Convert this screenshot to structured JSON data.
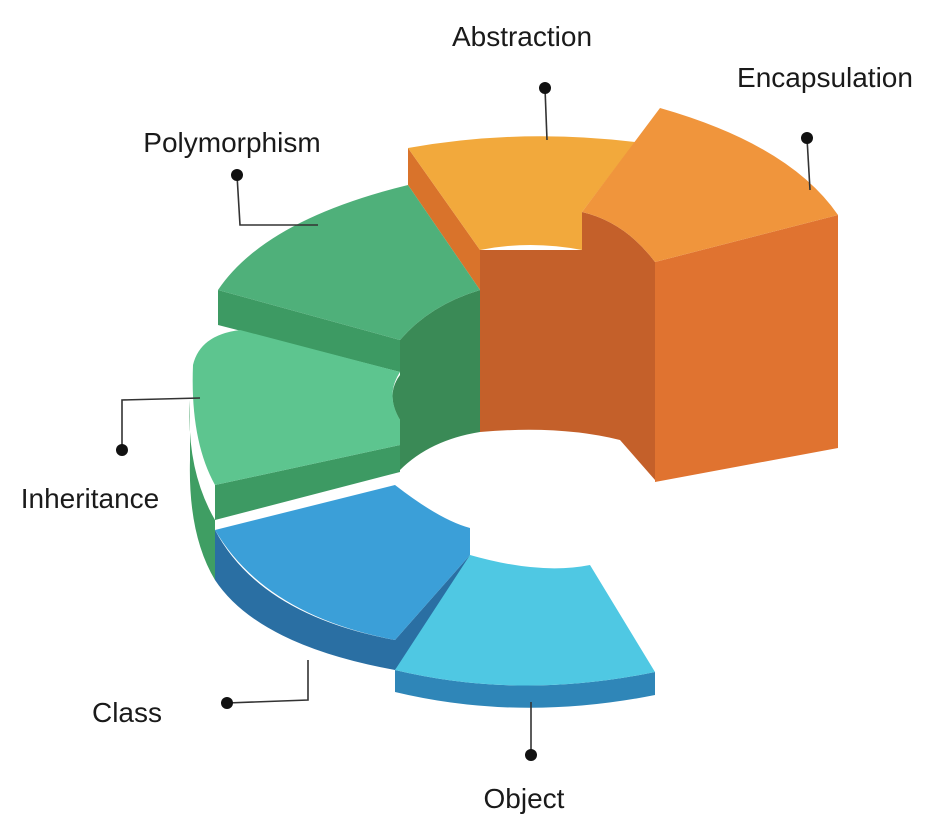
{
  "segments": [
    {
      "id": "abstraction",
      "label": "Abstraction",
      "top": "#f2a93c",
      "side": "#d9732b",
      "inner": "#c4602a"
    },
    {
      "id": "encapsulation",
      "label": "Encapsulation",
      "top": "#f0953c",
      "side": "#e07330",
      "inner": "#c4602a"
    },
    {
      "id": "polymorphism",
      "label": "Polymorphism",
      "top": "#4fb07a",
      "side": "#3d9a63",
      "inner": "#3a8a56"
    },
    {
      "id": "inheritance",
      "label": "Inheritance",
      "top": "#5dc58f",
      "side": "#3f9e63",
      "inner": "#3a8a56"
    },
    {
      "id": "class",
      "label": "Class",
      "top": "#3b9fd8",
      "side": "#2a6fa3",
      "inner": "#2a6fa3"
    },
    {
      "id": "object",
      "label": "Object",
      "top": "#4fc8e3",
      "side": "#2f86b8",
      "inner": "#2f86b8"
    }
  ]
}
